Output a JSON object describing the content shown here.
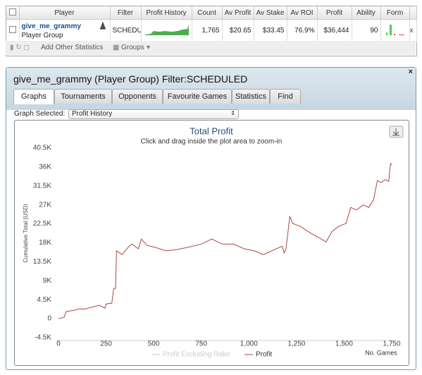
{
  "table": {
    "headers": [
      "Player",
      "Filter",
      "Profit History",
      "Count",
      "Av Profit",
      "Av Stake",
      "Av ROI",
      "Profit",
      "Ability",
      "Form"
    ],
    "row": {
      "player": "give_me_grammy",
      "player_type": "Player Group",
      "filter": "SCHEDUl",
      "count": "1,765",
      "av_profit": "$20.65",
      "av_stake": "$33.45",
      "av_roi": "76.9%",
      "profit": "$36,444",
      "ability": "90"
    },
    "toolbar": {
      "add": "Add Other Statistics",
      "groups": "Groups"
    }
  },
  "panel": {
    "title": "give_me_grammy (Player Group) Filter:SCHEDULED",
    "tabs": [
      "Graphs",
      "Tournaments",
      "Opponents",
      "Favourite Games",
      "Statistics",
      "Find"
    ],
    "graph_label": "Graph Selected:",
    "graph_selected": "Profit History"
  },
  "chart_data": {
    "type": "line",
    "title": "Total Profit",
    "subtitle": "Click and drag inside the plot area to zoom-in",
    "y_label": "Cumulative Total (USD)",
    "x_label": "No. Games",
    "hidden_series": {
      "name": "Profit Excluding Rake",
      "color": "#cccccc"
    },
    "series": [
      {
        "name": "Profit",
        "color": "#aa4643",
        "x": [
          0,
          30,
          40,
          85,
          105,
          140,
          180,
          215,
          245,
          250,
          280,
          290,
          300,
          305,
          335,
          365,
          385,
          420,
          435,
          465,
          510,
          565,
          620,
          675,
          750,
          805,
          860,
          920,
          975,
          1030,
          1075,
          1120,
          1175,
          1185,
          1195,
          1215,
          1230,
          1270,
          1325,
          1380,
          1405,
          1435,
          1470,
          1510,
          1535,
          1565,
          1600,
          1630,
          1655,
          1675,
          1695,
          1715,
          1735,
          1740,
          1745,
          1750
        ],
        "values": [
          0,
          330,
          1700,
          2000,
          2300,
          2300,
          2800,
          3200,
          2500,
          3500,
          3700,
          7200,
          7200,
          16100,
          15200,
          16900,
          17700,
          16600,
          18900,
          17400,
          16900,
          16100,
          16400,
          16900,
          17700,
          18900,
          17700,
          17700,
          16600,
          16100,
          15200,
          16100,
          17200,
          15600,
          16600,
          24300,
          22600,
          21900,
          20300,
          18900,
          18200,
          20600,
          21900,
          22600,
          26400,
          25800,
          27000,
          26400,
          28300,
          32800,
          32300,
          33000,
          32600,
          35300,
          36800,
          36500
        ]
      }
    ],
    "xlim": [
      0,
      1750
    ],
    "xticks": [
      0,
      250,
      500,
      750,
      {
        "value": 1000,
        "label": "1,000"
      },
      {
        "value": 1250,
        "label": "1,250"
      },
      {
        "value": 1500,
        "label": "1,500"
      },
      {
        "value": 1750,
        "label": "1,750"
      }
    ],
    "ylim": [
      -4500,
      40500
    ],
    "yticks": [
      {
        "value": -4500,
        "label": "-4.5K"
      },
      0,
      {
        "value": 4500,
        "label": "4.5K"
      },
      {
        "value": 9000,
        "label": "9K"
      },
      {
        "value": 13500,
        "label": "13.5K"
      },
      {
        "value": 18000,
        "label": "18K"
      },
      {
        "value": 22500,
        "label": "22.5K"
      },
      {
        "value": 27000,
        "label": "27K"
      },
      {
        "value": 31500,
        "label": "31.5K"
      },
      {
        "value": 36000,
        "label": "36K"
      },
      {
        "value": 40500,
        "label": "40.5K"
      }
    ]
  }
}
